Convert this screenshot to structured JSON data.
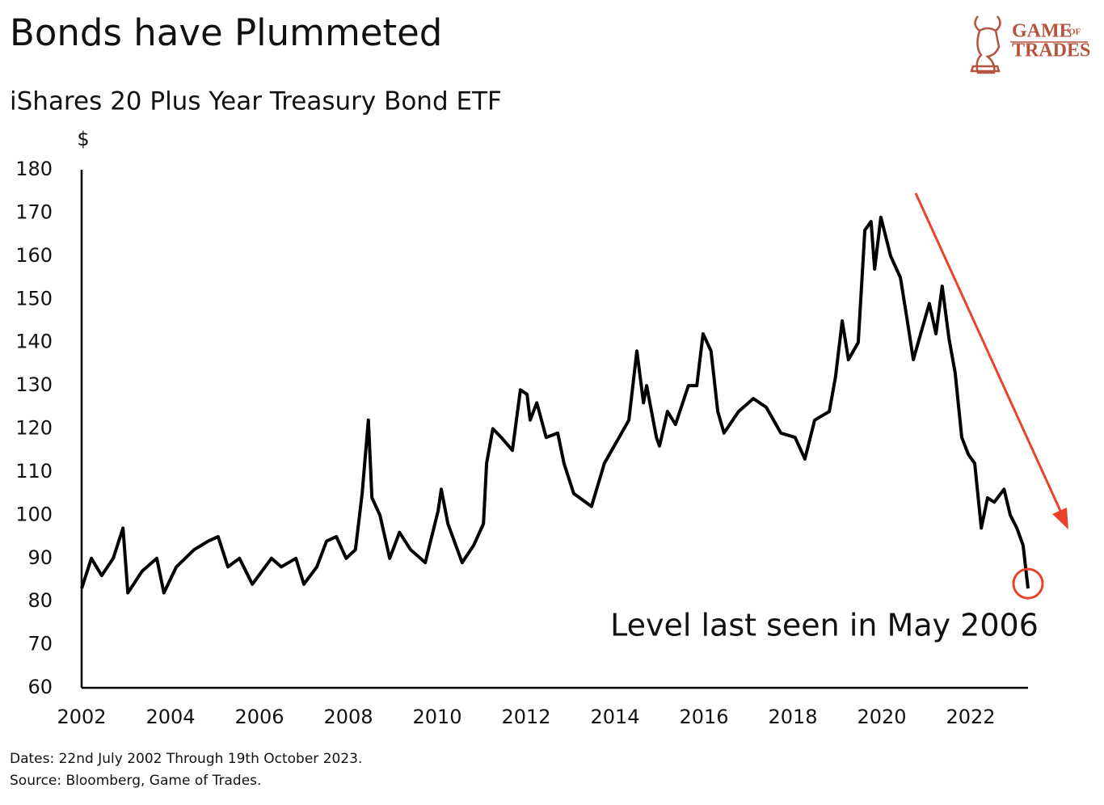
{
  "chart_data": {
    "type": "line",
    "title": "Bonds have Plummeted",
    "subtitle": "iShares 20 Plus Year Treasury Bond ETF",
    "y_label": "$",
    "annotation": "Level last seen in May 2006",
    "footnotes": [
      "Dates: 22nd July 2002 Through 19th October 2023.",
      "Source: Bloomberg, Game of Trades."
    ],
    "logo": {
      "word1": "GAME",
      "word2": "OF",
      "word3": "TRADES"
    },
    "color": "#000000",
    "annotation_color": "#e8442c",
    "x": [
      2002.0,
      2002.22,
      2002.45,
      2002.71,
      2002.93,
      2003.04,
      2003.36,
      2003.69,
      2003.85,
      2004.13,
      2004.53,
      2004.85,
      2005.07,
      2005.29,
      2005.55,
      2005.84,
      2006.27,
      2006.49,
      2006.82,
      2007.0,
      2007.29,
      2007.51,
      2007.73,
      2007.95,
      2008.16,
      2008.31,
      2008.45,
      2008.53,
      2008.71,
      2008.93,
      2009.15,
      2009.4,
      2009.73,
      2010.02,
      2010.09,
      2010.24,
      2010.56,
      2010.82,
      2011.04,
      2011.11,
      2011.25,
      2011.44,
      2011.69,
      2011.87,
      2012.02,
      2012.09,
      2012.24,
      2012.45,
      2012.71,
      2012.85,
      2013.07,
      2013.47,
      2013.76,
      2014.09,
      2014.31,
      2014.49,
      2014.64,
      2014.71,
      2014.93,
      2015.0,
      2015.18,
      2015.36,
      2015.65,
      2015.84,
      2015.98,
      2016.16,
      2016.31,
      2016.45,
      2016.78,
      2017.11,
      2017.4,
      2017.73,
      2018.05,
      2018.27,
      2018.49,
      2018.82,
      2018.96,
      2019.11,
      2019.25,
      2019.47,
      2019.62,
      2019.76,
      2019.84,
      2019.98,
      2020.2,
      2020.42,
      2020.56,
      2020.71,
      2020.93,
      2021.07,
      2021.22,
      2021.36,
      2021.51,
      2021.65,
      2021.8,
      2021.95,
      2022.09,
      2022.24,
      2022.38,
      2022.53,
      2022.75,
      2022.89,
      2023.04,
      2023.18,
      2023.29
    ],
    "values": [
      83,
      90,
      86,
      90,
      97,
      82,
      87,
      90,
      82,
      88,
      92,
      94,
      95,
      88,
      90,
      84,
      90,
      88,
      90,
      84,
      88,
      94,
      95,
      90,
      92,
      105,
      122,
      104,
      100,
      90,
      96,
      92,
      89,
      101,
      106,
      98,
      89,
      93,
      98,
      112,
      120,
      118,
      115,
      129,
      128,
      122,
      126,
      118,
      119,
      112,
      105,
      102,
      112,
      118,
      122,
      138,
      126,
      130,
      118,
      116,
      124,
      121,
      130,
      130,
      142,
      138,
      124,
      119,
      124,
      127,
      125,
      119,
      118,
      113,
      122,
      124,
      132,
      145,
      136,
      140,
      166,
      168,
      157,
      169,
      160,
      155,
      146,
      136,
      144,
      149,
      142,
      153,
      141,
      133,
      118,
      114,
      112,
      97,
      104,
      103,
      106,
      100,
      97,
      93,
      83
    ],
    "xlim": [
      2002,
      2023.29
    ],
    "xticks": [
      2002,
      2004,
      2006,
      2008,
      2010,
      2012,
      2014,
      2016,
      2018,
      2020,
      2022
    ],
    "ylim": [
      60,
      180
    ],
    "yticks": [
      60,
      70,
      80,
      90,
      100,
      110,
      120,
      130,
      140,
      150,
      160,
      170,
      180
    ]
  }
}
